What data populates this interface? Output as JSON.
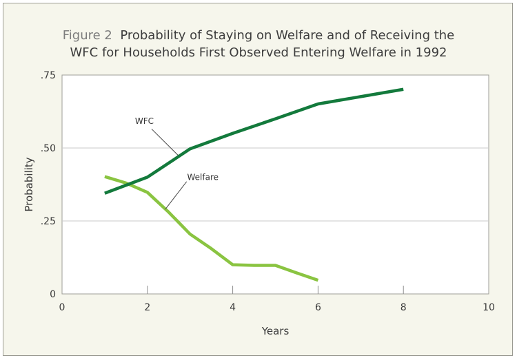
{
  "title": {
    "figure_label": "Figure 2",
    "line1": "Probability of Staying on Welfare and of Receiving the",
    "line2": "WFC for Households First Observed Entering Welfare in 1992"
  },
  "chart_data": {
    "type": "line",
    "xlabel": "Years",
    "ylabel": "Probability",
    "xlim": [
      0,
      10
    ],
    "ylim": [
      0,
      0.75
    ],
    "x_ticks": [
      0,
      2,
      4,
      6,
      8,
      10
    ],
    "x_tick_labels": [
      "0",
      "2",
      "4",
      "6",
      "8",
      "10"
    ],
    "y_ticks": [
      0,
      0.25,
      0.5,
      0.75
    ],
    "y_tick_labels": [
      "0",
      ".25",
      ".50",
      ".75"
    ],
    "grid": "horizontal",
    "series": [
      {
        "name": "WFC",
        "color": "#137a3c",
        "x": [
          1,
          2,
          3,
          4,
          5,
          6,
          7,
          8
        ],
        "y": [
          0.345,
          0.4,
          0.497,
          0.55,
          0.6,
          0.651,
          0.676,
          0.701
        ]
      },
      {
        "name": "Welfare",
        "color": "#8ac441",
        "x": [
          1,
          1.5,
          2,
          2.5,
          3,
          3.5,
          4,
          4.5,
          5,
          5.5,
          6
        ],
        "y": [
          0.402,
          0.38,
          0.348,
          0.28,
          0.205,
          0.155,
          0.1,
          0.098,
          0.098,
          0.072,
          0.047
        ]
      }
    ]
  }
}
